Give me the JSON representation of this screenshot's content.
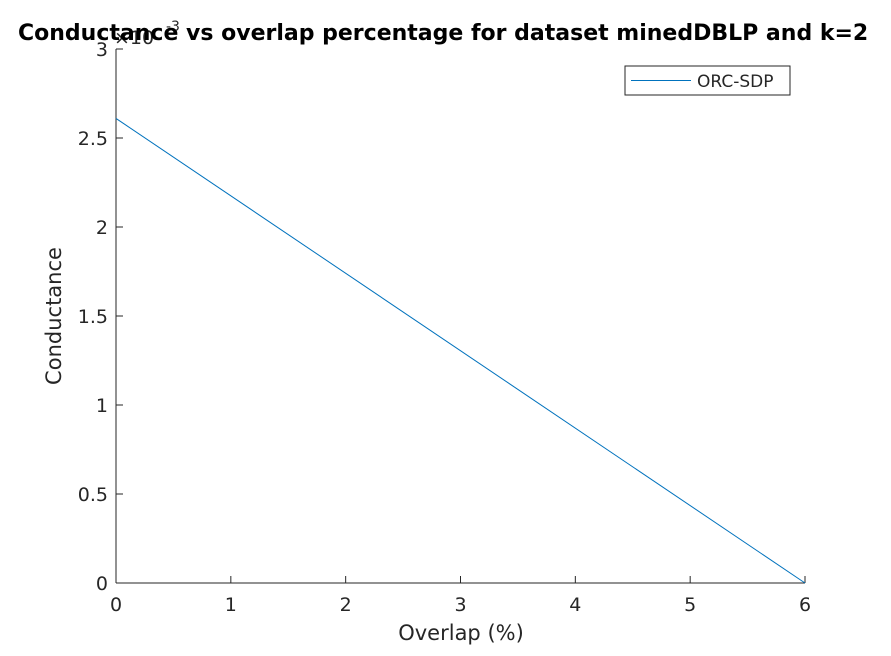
{
  "chart_data": {
    "type": "line",
    "title": "Conductance vs overlap percentage for dataset minedDBLP and k=2",
    "xlabel": "Overlap (%)",
    "ylabel": "Conductance",
    "y_exponent_label": "×10",
    "y_exponent_power": "-3",
    "xlim": [
      0,
      6
    ],
    "ylim": [
      0,
      3
    ],
    "y_scale_factor": 0.001,
    "x_ticks": [
      0,
      1,
      2,
      3,
      4,
      5,
      6
    ],
    "x_tick_labels": [
      "0",
      "1",
      "2",
      "3",
      "4",
      "5",
      "6"
    ],
    "y_ticks": [
      0,
      0.5,
      1,
      1.5,
      2,
      2.5,
      3
    ],
    "y_tick_labels": [
      "0",
      "0.5",
      "1",
      "1.5",
      "2",
      "2.5",
      "3"
    ],
    "grid": false,
    "legend_position": "top-right",
    "series": [
      {
        "name": "ORC-SDP",
        "color": "#0072BD",
        "x": [
          0,
          6
        ],
        "y": [
          2.61,
          0
        ]
      }
    ]
  }
}
